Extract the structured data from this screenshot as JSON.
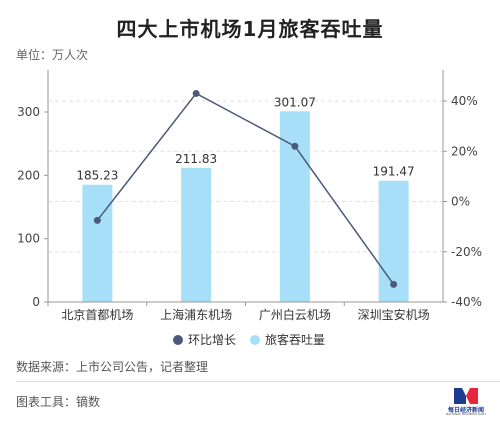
{
  "title": "四大上市机场1月旅客吞吐量",
  "unit": "单位：万人次",
  "source": "数据来源：上市公司公告，记者整理",
  "tool": "图表工具：镝数",
  "logo": {
    "name": "每日经济新闻",
    "sub": "NATIONAL BUSINESS DAILY"
  },
  "colors": {
    "bar": "#a8dff8",
    "line": "#4b5a7a",
    "grid": "#e3e3e3",
    "axis": "#999999"
  },
  "chart_data": {
    "type": "bar",
    "categories": [
      "北京首都机场",
      "上海浦东机场",
      "广州白云机场",
      "深圳宝安机场"
    ],
    "series": [
      {
        "name": "旅客吞吐量",
        "type": "bar",
        "axis": "left",
        "values": [
          185.23,
          211.83,
          301.07,
          191.47
        ]
      },
      {
        "name": "环比增长",
        "type": "line",
        "axis": "right",
        "values": [
          -7.5,
          43,
          22,
          -33
        ]
      }
    ],
    "bar_labels": [
      "185.23",
      "211.83",
      "301.07",
      "191.47"
    ],
    "y_left": {
      "range": [
        0,
        300
      ],
      "ticks": [
        "0",
        "100",
        "200",
        "300"
      ]
    },
    "y_right": {
      "range": [
        -40,
        40
      ],
      "ticks": [
        "-40%",
        "-20%",
        "0%",
        "20%",
        "40%"
      ]
    },
    "grid": true,
    "legend": "bottom"
  }
}
